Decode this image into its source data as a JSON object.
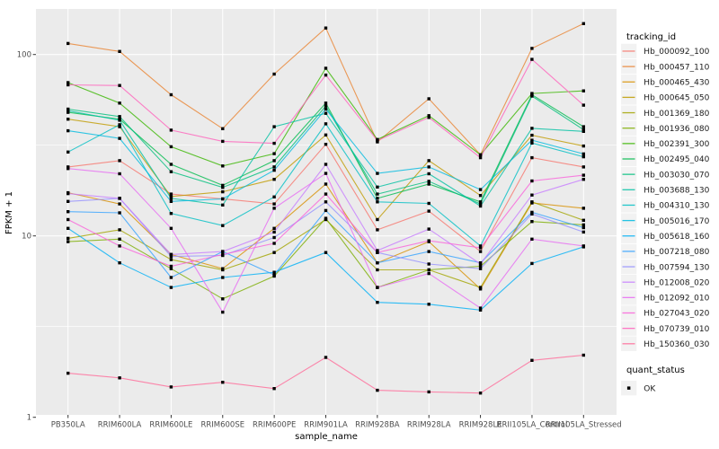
{
  "figure": {
    "background": "#ffffff",
    "panel_background": "#ebebeb",
    "grid_color": "#ffffff",
    "tick_color": "#333333",
    "tick_label_color": "#4d4d4d",
    "axis_title_color": "#000000",
    "legend_key_background": "#f2f2f2",
    "point_color": "#000000"
  },
  "axes": {
    "x_title": "sample_name",
    "y_title": "FPKM + 1"
  },
  "legend": {
    "tracking_title": "tracking_id",
    "quant_title": "quant_status",
    "quant_items": [
      {
        "label": "OK",
        "marker": "black-square"
      }
    ]
  },
  "chart_data": {
    "type": "line",
    "title": "",
    "xlabel": "sample_name",
    "ylabel": "FPKM + 1",
    "yscale": "log10",
    "ylim": [
      1,
      180
    ],
    "y_ticks": [
      {
        "label": "1",
        "value": 1
      },
      {
        "label": "10",
        "value": 10
      },
      {
        "label": "100",
        "value": 100
      }
    ],
    "y_minor_ticks": [
      3.162,
      31.62
    ],
    "grid": true,
    "legend_position": "right",
    "marker": "black-square",
    "categories": [
      "PB350LA",
      "RRIM600LA",
      "RRIM600LE",
      "RRIM600SE",
      "RRIM600PE",
      "RRIM901LA",
      "RRIM928BA",
      "RRIM928LA",
      "RRIM928LE",
      "RRII105LA_Control",
      "RRII105LA_Stressed"
    ],
    "series": [
      {
        "name": "Hb_000092_100",
        "color": "#F8766D",
        "values": [
          24,
          26,
          17,
          16,
          15,
          32,
          10.8,
          13.7,
          8.2,
          27,
          24
        ]
      },
      {
        "name": "Hb_000457_110",
        "color": "#EA8331",
        "values": [
          115,
          104,
          60,
          39,
          78,
          140,
          33,
          57,
          28,
          108,
          148
        ]
      },
      {
        "name": "Hb_000465_430",
        "color": "#D89000",
        "values": [
          17.3,
          15,
          7.9,
          6.6,
          11,
          19.3,
          7.1,
          9.3,
          5.1,
          15.2,
          14.2
        ]
      },
      {
        "name": "Hb_000645_050",
        "color": "#C09B00",
        "values": [
          44,
          40,
          16.5,
          17.5,
          20.5,
          36,
          12.3,
          26,
          16.7,
          35.9,
          31.3
        ]
      },
      {
        "name": "Hb_001369_180",
        "color": "#A3A500",
        "values": [
          9.7,
          10.8,
          7.4,
          6.5,
          8.1,
          12.3,
          6.5,
          6.5,
          5.2,
          15.4,
          12.2
        ]
      },
      {
        "name": "Hb_001936_080",
        "color": "#7CAE00",
        "values": [
          9.3,
          9.6,
          6.6,
          4.5,
          6.0,
          12.5,
          5.2,
          6.5,
          6.8,
          12,
          11.5
        ]
      },
      {
        "name": "Hb_002391_300",
        "color": "#39B600",
        "values": [
          70,
          54,
          31,
          24.3,
          28.4,
          84,
          34,
          46,
          28,
          61,
          63
        ]
      },
      {
        "name": "Hb_002495_040",
        "color": "#00BB4E",
        "values": [
          48,
          44,
          24.8,
          19,
          26,
          54,
          16.1,
          19.3,
          15.4,
          60,
          40
        ]
      },
      {
        "name": "Hb_003030_070",
        "color": "#00BF7D",
        "values": [
          50,
          45.5,
          22.6,
          18.5,
          24,
          52,
          17,
          20,
          15,
          59,
          38.5
        ]
      },
      {
        "name": "Hb_003688_130",
        "color": "#00C1A3",
        "values": [
          49,
          43.4,
          16.1,
          14.8,
          40,
          47.4,
          18.6,
          22,
          14.6,
          39.2,
          37.7
        ]
      },
      {
        "name": "Hb_004310_130",
        "color": "#00BFC4",
        "values": [
          29,
          41,
          13.3,
          11.4,
          16.4,
          41.5,
          15.4,
          15.1,
          8.8,
          32.5,
          27.3
        ]
      },
      {
        "name": "Hb_005016_170",
        "color": "#00BAE0",
        "values": [
          38,
          34.5,
          15.5,
          16,
          23,
          50,
          22.1,
          24,
          18,
          33.7,
          28.3
        ]
      },
      {
        "name": "Hb_005618_160",
        "color": "#00B0F6",
        "values": [
          11,
          7.1,
          5.2,
          5.9,
          6.3,
          8.1,
          4.3,
          4.2,
          3.9,
          7.05,
          8.7
        ]
      },
      {
        "name": "Hb_007218_080",
        "color": "#35A2FF",
        "values": [
          13.6,
          13.4,
          5.9,
          8.2,
          6.1,
          13.8,
          7.1,
          8.2,
          7.1,
          13.5,
          11.1
        ]
      },
      {
        "name": "Hb_007594_130",
        "color": "#9590FF",
        "values": [
          15.5,
          16.1,
          7.7,
          7.8,
          9.8,
          15.4,
          8.1,
          7.0,
          6.6,
          13.2,
          10.5
        ]
      },
      {
        "name": "Hb_012008_020",
        "color": "#C77CFF",
        "values": [
          17.1,
          16.1,
          7.9,
          8.2,
          10.5,
          24.8,
          8.3,
          10.9,
          7.0,
          16.8,
          20.5
        ]
      },
      {
        "name": "Hb_012092_010",
        "color": "#E76BF3",
        "values": [
          23.5,
          22,
          11,
          3.8,
          14.2,
          22.1,
          5.2,
          6.2,
          4.0,
          9.6,
          8.8
        ]
      },
      {
        "name": "Hb_027043_020",
        "color": "#FA62DB",
        "values": [
          12.3,
          8.8,
          6.8,
          7.9,
          9.1,
          17,
          8.1,
          9.4,
          8.6,
          20.1,
          21.6
        ]
      },
      {
        "name": "Hb_070739_010",
        "color": "#FF62BC",
        "values": [
          68,
          67.5,
          38.3,
          33.2,
          32.4,
          77,
          33.5,
          45,
          27,
          94,
          52.6
        ]
      },
      {
        "name": "Hb_150360_030",
        "color": "#FF6A98",
        "values": [
          1.75,
          1.65,
          1.47,
          1.56,
          1.44,
          2.14,
          1.41,
          1.38,
          1.36,
          2.06,
          2.2
        ]
      }
    ]
  }
}
